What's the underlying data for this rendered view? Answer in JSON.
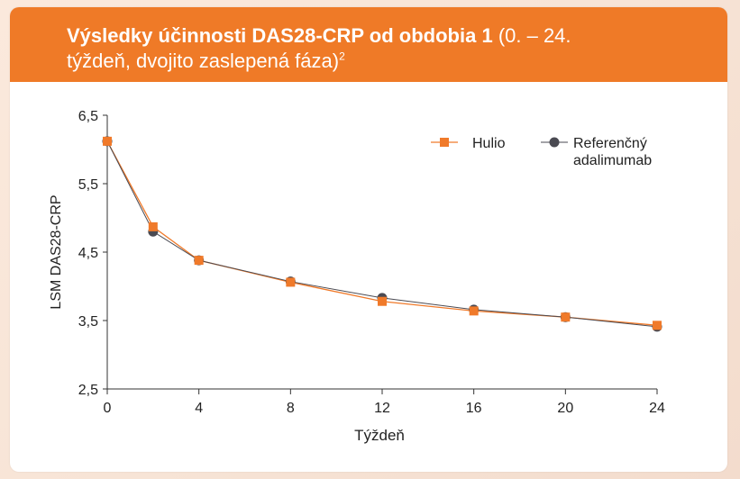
{
  "header": {
    "title_bold": "Výsledky účinnosti DAS28-CRP od obdobia 1",
    "title_rest": " (0. – 24.",
    "title_line2": "týždeň, dvojito zaslepená fáza)",
    "title_sup": "2"
  },
  "chart_data": {
    "type": "line",
    "xlabel": "Týždeň",
    "ylabel": "LSM DAS28-CRP",
    "xlim": [
      0,
      24
    ],
    "ylim": [
      2.5,
      6.5
    ],
    "xticks": [
      0,
      4,
      8,
      12,
      16,
      20,
      24
    ],
    "yticks": [
      2.5,
      3.5,
      4.5,
      5.5,
      6.5
    ],
    "ytick_labels": [
      "2,5",
      "3,5",
      "4,5",
      "5,5",
      "6,5"
    ],
    "grid": false,
    "legend_position": "top-right",
    "x": [
      0,
      2,
      4,
      8,
      12,
      16,
      20,
      24
    ],
    "series": [
      {
        "name": "Hulio",
        "marker": "square",
        "color": "#f07a2a",
        "values": [
          6.12,
          4.87,
          4.38,
          4.06,
          3.78,
          3.64,
          3.55,
          3.43
        ]
      },
      {
        "name": "Referenčný adalimumab",
        "marker": "circle",
        "color": "#4a4a52",
        "values": [
          6.12,
          4.8,
          4.38,
          4.07,
          3.83,
          3.66,
          3.55,
          3.41
        ]
      }
    ],
    "legend_labels": [
      "Hulio",
      "Referenčný",
      "adalimumab"
    ]
  }
}
